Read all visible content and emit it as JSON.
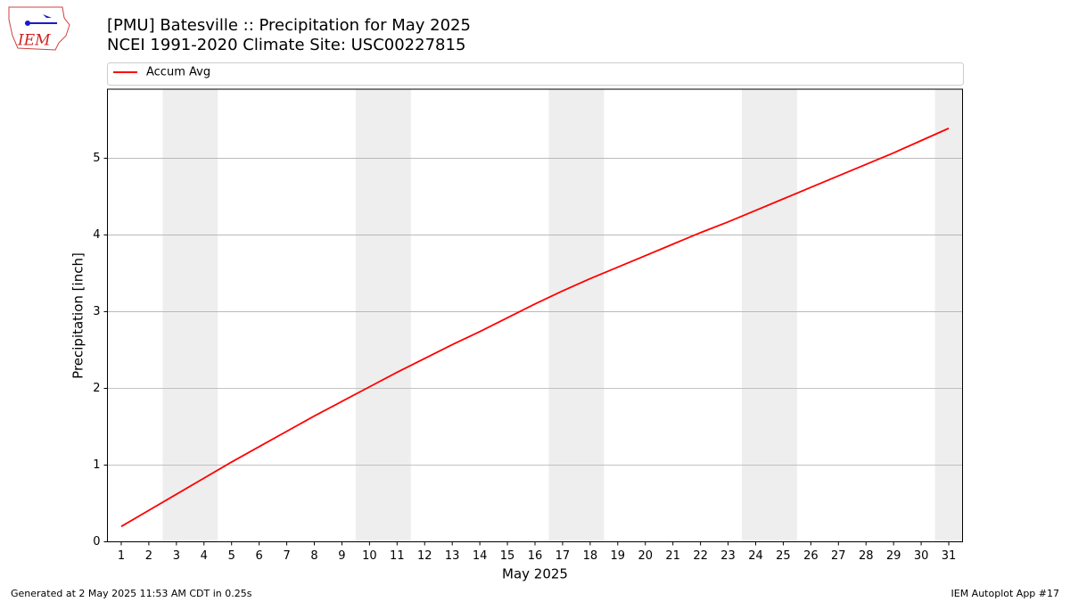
{
  "chart_data": {
    "type": "line",
    "title": "[PMU] Batesville :: Precipitation for May 2025",
    "subtitle": "NCEI 1991-2020 Climate Site: USC00227815",
    "xlabel": "May 2025",
    "ylabel": "Precipitation [inch]",
    "x": [
      1,
      2,
      3,
      4,
      5,
      6,
      7,
      8,
      9,
      10,
      11,
      12,
      13,
      14,
      15,
      16,
      17,
      18,
      19,
      20,
      21,
      22,
      23,
      24,
      25,
      26,
      27,
      28,
      29,
      30,
      31
    ],
    "series": [
      {
        "name": "Accum Avg",
        "color": "#ff0000",
        "values": [
          0.2,
          0.41,
          0.62,
          0.83,
          1.04,
          1.24,
          1.44,
          1.64,
          1.83,
          2.02,
          2.21,
          2.39,
          2.57,
          2.74,
          2.92,
          3.1,
          3.27,
          3.43,
          3.58,
          3.73,
          3.88,
          4.03,
          4.17,
          4.32,
          4.47,
          4.62,
          4.77,
          4.92,
          5.07,
          5.23,
          5.39
        ]
      }
    ],
    "xlim": [
      0.5,
      31.5
    ],
    "xticks": [
      1,
      2,
      3,
      4,
      5,
      6,
      7,
      8,
      9,
      10,
      11,
      12,
      13,
      14,
      15,
      16,
      17,
      18,
      19,
      20,
      21,
      22,
      23,
      24,
      25,
      26,
      27,
      28,
      29,
      30,
      31
    ],
    "ylim": [
      0,
      5.9
    ],
    "yticks": [
      0,
      1,
      2,
      3,
      4,
      5
    ],
    "grid": true,
    "legend": "top",
    "shaded_spans": [
      [
        2.5,
        4.5
      ],
      [
        9.5,
        11.5
      ],
      [
        16.5,
        18.5
      ],
      [
        23.5,
        25.5
      ],
      [
        30.5,
        31.5
      ]
    ],
    "shade_color": "#eeeeee",
    "logo_text": "IEM",
    "footer_left": "Generated at 2 May 2025 11:53 AM CDT in 0.25s",
    "footer_right": "IEM Autoplot App #17"
  }
}
